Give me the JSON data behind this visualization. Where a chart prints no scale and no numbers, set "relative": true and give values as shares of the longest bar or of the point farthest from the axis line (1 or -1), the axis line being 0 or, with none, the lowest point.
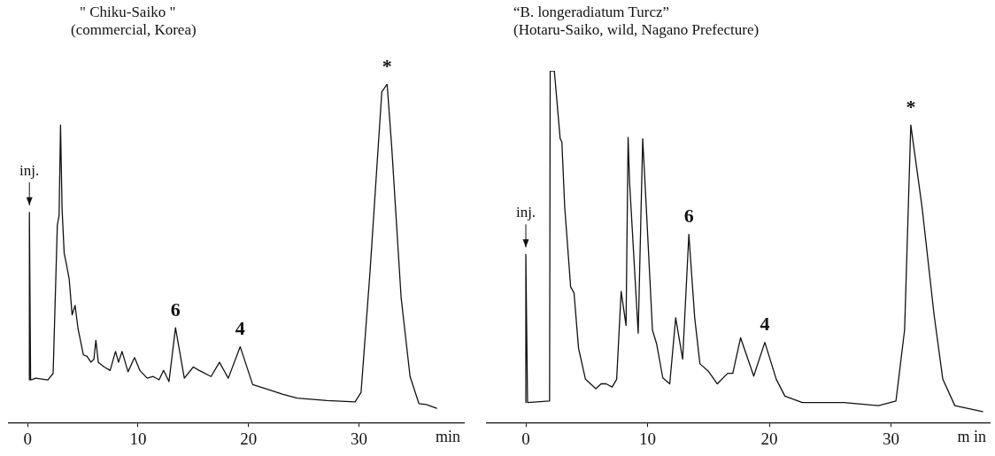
{
  "chart_data": [
    {
      "type": "line",
      "title": "\" Chiku-Saiko \"",
      "subtitle": "(commercial, Korea)",
      "xlabel": "min",
      "relative": true,
      "xlim": [
        -1.7,
        39.5
      ],
      "xticks": [
        0,
        10,
        20,
        30
      ],
      "tick_labels": "x",
      "grid": false,
      "legend": false,
      "marker": "none",
      "line_style": "solid",
      "annotations": [
        {
          "text": "inj.",
          "x": 0.16,
          "y": 0.621
        },
        {
          "text": "6",
          "x": 13.39,
          "y": 0.28
        },
        {
          "text": "4",
          "x": 19.25,
          "y": 0.224
        },
        {
          "text": "*",
          "x": 32.55,
          "y": 1.0
        }
      ],
      "series": [
        {
          "color": "#111111",
          "x": [
            0.16,
            0.16,
            0.27,
            0.75,
            1.83,
            2.31,
            2.69,
            2.85,
            2.98,
            3.12,
            3.31,
            3.49,
            3.76,
            4.03,
            4.3,
            4.57,
            5.05,
            5.38,
            5.73,
            6.0,
            6.18,
            6.4,
            6.94,
            7.47,
            7.96,
            8.23,
            8.55,
            9.09,
            9.68,
            10.16,
            10.83,
            11.37,
            11.9,
            12.31,
            12.8,
            13.39,
            14.19,
            15.0,
            15.54,
            16.61,
            17.37,
            18.17,
            19.25,
            20.38,
            21.72,
            23.06,
            24.4,
            27.1,
            29.65,
            30.19,
            31.0,
            32.07,
            32.55,
            32.96,
            33.82,
            34.63,
            35.43,
            36.1,
            37.04
          ],
          "values": [
            0.126,
            0.621,
            0.126,
            0.131,
            0.126,
            0.145,
            0.584,
            0.612,
            0.879,
            0.631,
            0.5,
            0.472,
            0.425,
            0.318,
            0.346,
            0.276,
            0.2,
            0.196,
            0.178,
            0.187,
            0.243,
            0.178,
            0.164,
            0.154,
            0.21,
            0.178,
            0.21,
            0.15,
            0.192,
            0.154,
            0.131,
            0.136,
            0.126,
            0.154,
            0.121,
            0.28,
            0.131,
            0.164,
            0.154,
            0.136,
            0.178,
            0.131,
            0.224,
            0.112,
            0.098,
            0.084,
            0.072,
            0.065,
            0.061,
            0.089,
            0.444,
            0.977,
            1.0,
            0.818,
            0.369,
            0.136,
            0.056,
            0.053,
            0.042
          ]
        }
      ]
    },
    {
      "type": "line",
      "title": "“B. longeradiatum Turcz”",
      "subtitle": "(Hotaru-Saiko, wild, Nagano Prefecture)",
      "xlabel": "m in",
      "relative": true,
      "xlim": [
        -3.2,
        38.1
      ],
      "xticks": [
        0,
        10,
        20,
        30
      ],
      "tick_labels": "x",
      "grid": false,
      "legend": false,
      "marker": "none",
      "line_style": "solid",
      "annotations": [
        {
          "text": "inj.",
          "x": 0,
          "y": 0.478
        },
        {
          "text": "6",
          "x": 13.39,
          "y": 0.535
        },
        {
          "text": "4",
          "x": 19.63,
          "y": 0.228
        },
        {
          "text": "*",
          "x": 31.62,
          "y": 0.846
        }
      ],
      "series": [
        {
          "color": "#111111",
          "x": [
            0,
            0,
            0.14,
            1.95,
            2.0,
            2.34,
            2.82,
            2.96,
            3.19,
            3.68,
            3.96,
            4.33,
            4.9,
            5.75,
            6.18,
            6.6,
            7.09,
            7.46,
            7.83,
            8.23,
            8.4,
            8.52,
            9.23,
            9.6,
            9.89,
            10.4,
            10.74,
            11.25,
            11.82,
            12.31,
            12.88,
            13.39,
            13.87,
            14.3,
            15.01,
            15.73,
            16.58,
            17.0,
            17.64,
            18.72,
            19.63,
            20.57,
            21.28,
            22.71,
            26.12,
            28.97,
            30.4,
            31.11,
            31.62,
            32.54,
            33.53,
            34.25,
            35.24,
            37.52
          ],
          "values": [
            0.057,
            0.478,
            0.057,
            0.061,
            1.0,
            1.0,
            0.807,
            0.798,
            0.614,
            0.386,
            0.368,
            0.211,
            0.123,
            0.096,
            0.11,
            0.11,
            0.101,
            0.123,
            0.373,
            0.276,
            0.811,
            0.684,
            0.254,
            0.807,
            0.614,
            0.263,
            0.224,
            0.127,
            0.11,
            0.298,
            0.18,
            0.535,
            0.298,
            0.167,
            0.145,
            0.11,
            0.14,
            0.14,
            0.241,
            0.132,
            0.228,
            0.123,
            0.075,
            0.057,
            0.057,
            0.048,
            0.061,
            0.263,
            0.846,
            0.614,
            0.307,
            0.123,
            0.048,
            0.031
          ]
        }
      ]
    }
  ]
}
